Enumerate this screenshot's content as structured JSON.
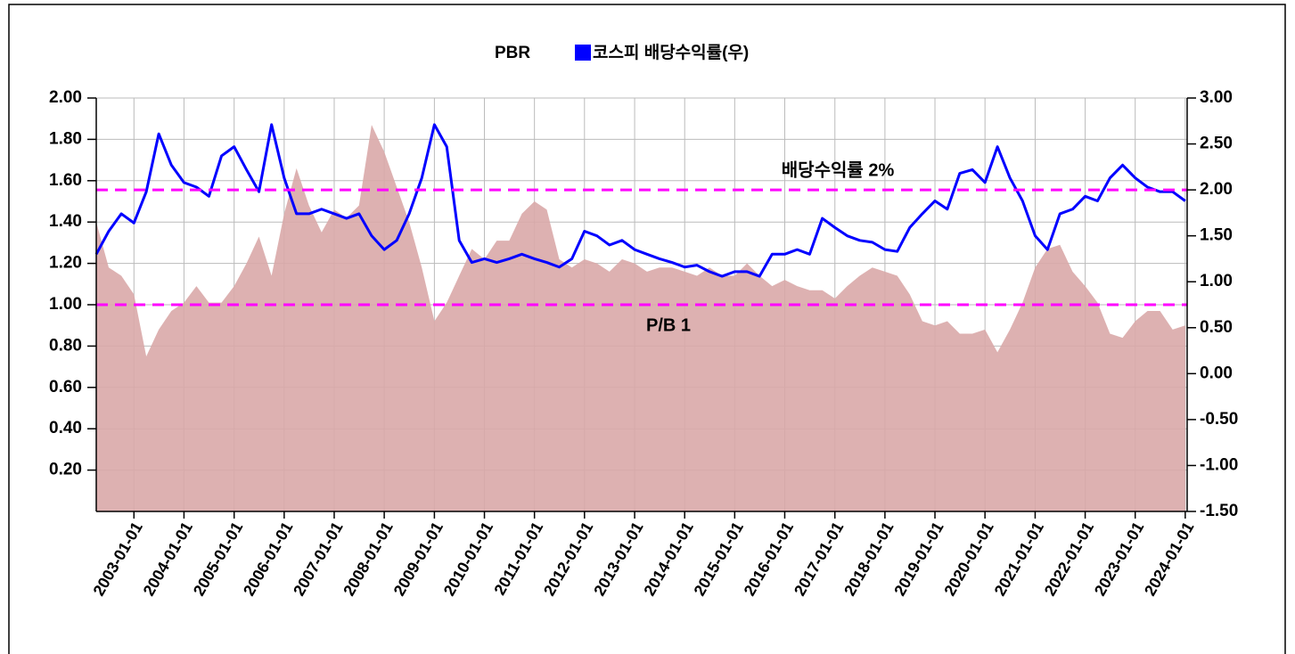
{
  "chart_data": {
    "type": "area-line",
    "x": [
      "2002-04-01",
      "2002-07-01",
      "2002-10-01",
      "2003-01-01",
      "2003-04-01",
      "2003-07-01",
      "2003-10-01",
      "2004-01-01",
      "2004-04-01",
      "2004-07-01",
      "2004-10-01",
      "2005-01-01",
      "2005-04-01",
      "2005-07-01",
      "2005-10-01",
      "2006-01-01",
      "2006-04-01",
      "2006-07-01",
      "2006-10-01",
      "2007-01-01",
      "2007-04-01",
      "2007-07-01",
      "2007-10-01",
      "2008-01-01",
      "2008-04-01",
      "2008-07-01",
      "2008-10-01",
      "2009-01-01",
      "2009-04-01",
      "2009-07-01",
      "2009-10-01",
      "2010-01-01",
      "2010-04-01",
      "2010-07-01",
      "2010-10-01",
      "2011-01-01",
      "2011-04-01",
      "2011-07-01",
      "2011-10-01",
      "2012-01-01",
      "2012-04-01",
      "2012-07-01",
      "2012-10-01",
      "2013-01-01",
      "2013-04-01",
      "2013-07-01",
      "2013-10-01",
      "2014-01-01",
      "2014-04-01",
      "2014-07-01",
      "2014-10-01",
      "2015-01-01",
      "2015-04-01",
      "2015-07-01",
      "2015-10-01",
      "2016-01-01",
      "2016-04-01",
      "2016-07-01",
      "2016-10-01",
      "2017-01-01",
      "2017-04-01",
      "2017-07-01",
      "2017-10-01",
      "2018-01-01",
      "2018-04-01",
      "2018-07-01",
      "2018-10-01",
      "2019-01-01",
      "2019-04-01",
      "2019-07-01",
      "2019-10-01",
      "2020-01-01",
      "2020-04-01",
      "2020-07-01",
      "2020-10-01",
      "2021-01-01",
      "2021-04-01",
      "2021-07-01",
      "2021-10-01",
      "2022-01-01",
      "2022-04-01",
      "2022-07-01",
      "2022-10-01",
      "2023-01-01",
      "2023-04-01",
      "2023-07-01",
      "2023-10-01",
      "2024-01-01"
    ],
    "series": [
      {
        "name": "PBR",
        "kind": "area",
        "axis": "y",
        "color": "#d9a9a9",
        "values": [
          1.4,
          1.18,
          1.14,
          1.05,
          0.75,
          0.88,
          0.97,
          1.01,
          1.09,
          1.01,
          1.01,
          1.09,
          1.2,
          1.33,
          1.14,
          1.44,
          1.66,
          1.48,
          1.35,
          1.46,
          1.42,
          1.48,
          1.87,
          1.74,
          1.57,
          1.4,
          1.18,
          0.92,
          1.01,
          1.14,
          1.27,
          1.22,
          1.31,
          1.31,
          1.44,
          1.5,
          1.46,
          1.22,
          1.18,
          1.22,
          1.2,
          1.16,
          1.22,
          1.2,
          1.16,
          1.18,
          1.18,
          1.16,
          1.14,
          1.18,
          1.14,
          1.14,
          1.2,
          1.14,
          1.09,
          1.12,
          1.09,
          1.07,
          1.07,
          1.03,
          1.09,
          1.14,
          1.18,
          1.16,
          1.14,
          1.05,
          0.92,
          0.9,
          0.92,
          0.86,
          0.86,
          0.88,
          0.77,
          0.88,
          1.01,
          1.18,
          1.27,
          1.29,
          1.16,
          1.09,
          1.01,
          0.86,
          0.84,
          0.92,
          0.97,
          0.97,
          0.88,
          0.9
        ]
      },
      {
        "name": "코스피 배당수익률(우)",
        "kind": "line",
        "axis": "y2",
        "color": "#0000ff",
        "values": [
          1.3,
          1.55,
          1.74,
          1.64,
          1.98,
          2.61,
          2.27,
          2.08,
          2.03,
          1.93,
          2.37,
          2.47,
          2.22,
          1.98,
          2.71,
          2.13,
          1.74,
          1.74,
          1.79,
          1.74,
          1.69,
          1.74,
          1.5,
          1.35,
          1.45,
          1.74,
          2.13,
          2.71,
          2.47,
          1.45,
          1.21,
          1.25,
          1.21,
          1.25,
          1.3,
          1.25,
          1.21,
          1.16,
          1.25,
          1.55,
          1.5,
          1.4,
          1.45,
          1.35,
          1.3,
          1.25,
          1.21,
          1.16,
          1.18,
          1.11,
          1.06,
          1.11,
          1.11,
          1.06,
          1.3,
          1.3,
          1.35,
          1.3,
          1.69,
          1.59,
          1.5,
          1.45,
          1.43,
          1.35,
          1.33,
          1.59,
          1.74,
          1.88,
          1.79,
          2.18,
          2.22,
          2.08,
          2.47,
          2.13,
          1.88,
          1.5,
          1.35,
          1.74,
          1.79,
          1.93,
          1.88,
          2.13,
          2.27,
          2.13,
          2.03,
          1.98,
          1.98,
          1.88
        ]
      }
    ],
    "xticks": [
      "2003-01-01",
      "2004-01-01",
      "2005-01-01",
      "2006-01-01",
      "2007-01-01",
      "2008-01-01",
      "2009-01-01",
      "2010-01-01",
      "2011-01-01",
      "2012-01-01",
      "2013-01-01",
      "2014-01-01",
      "2015-01-01",
      "2016-01-01",
      "2017-01-01",
      "2018-01-01",
      "2019-01-01",
      "2020-01-01",
      "2021-01-01",
      "2022-01-01",
      "2023-01-01",
      "2024-01-01"
    ],
    "xlim": [
      "2002-04-01",
      "2024-01-15"
    ],
    "ylim": [
      0,
      2
    ],
    "yticks": [
      {
        "value": 0.2,
        "label": "0.20"
      },
      {
        "value": 0.4,
        "label": "0.40"
      },
      {
        "value": 0.6,
        "label": "0.60"
      },
      {
        "value": 0.8,
        "label": "0.80"
      },
      {
        "value": 1,
        "label": "1.00"
      },
      {
        "value": 1.2,
        "label": "1.20"
      },
      {
        "value": 1.4,
        "label": "1.40"
      },
      {
        "value": 1.6,
        "label": "1.60"
      },
      {
        "value": 1.8,
        "label": "1.80"
      },
      {
        "value": 2,
        "label": "2.00"
      }
    ],
    "y2lim": [
      -1.5,
      3
    ],
    "y2ticks": [
      {
        "value": -1.5,
        "label": "-1.50"
      },
      {
        "value": -1,
        "label": "-1.00"
      },
      {
        "value": -0.5,
        "label": "-0.50"
      },
      {
        "value": 0,
        "label": "0.00"
      },
      {
        "value": 0.5,
        "label": "0.50"
      },
      {
        "value": 1,
        "label": "1.00"
      },
      {
        "value": 1.5,
        "label": "1.50"
      },
      {
        "value": 2,
        "label": "2.00"
      },
      {
        "value": 2.5,
        "label": "2.50"
      },
      {
        "value": 3,
        "label": "3.00"
      }
    ],
    "grid": true,
    "legend": "top",
    "annotations": [
      {
        "label": "배당수익률 2%",
        "value": 2,
        "axis": "y2",
        "color": "#ff00ff",
        "text_color": "#0000ff"
      },
      {
        "label": "P/B 1",
        "value": 1,
        "axis": "y",
        "color": "#ff00ff",
        "text_color": "#0000ff"
      }
    ]
  }
}
